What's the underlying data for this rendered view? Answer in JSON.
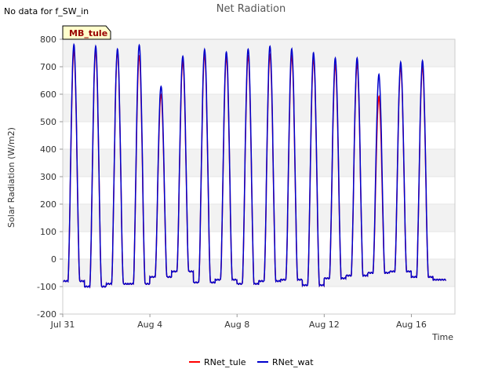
{
  "corner_note": "No data for f_SW_in",
  "chart_data": {
    "type": "line",
    "title": "Net Radiation",
    "xlabel": "Time",
    "ylabel": "Solar Radiation (W/m2)",
    "ylim": [
      -200,
      800
    ],
    "yticks": [
      -200,
      -100,
      0,
      100,
      200,
      300,
      400,
      500,
      600,
      700,
      800
    ],
    "xlim": [
      "2023-07-31",
      "2023-08-18"
    ],
    "xticks": [
      {
        "date": "2023-07-31",
        "label": "Jul 31"
      },
      {
        "date": "2023-08-04",
        "label": "Aug 4"
      },
      {
        "date": "2023-08-08",
        "label": "Aug 8"
      },
      {
        "date": "2023-08-12",
        "label": "Aug 12"
      },
      {
        "date": "2023-08-16",
        "label": "Aug 16"
      }
    ],
    "site_label": "MB_tule",
    "background_bands": true,
    "legend_placement": "bottom-center",
    "series": [
      {
        "name": "RNet_tule",
        "color": "#ff0000"
      },
      {
        "name": "RNet_wat",
        "color": "#0000cc"
      }
    ],
    "daily": [
      {
        "day": "2023-07-31",
        "night": -80,
        "tule_peak": 760,
        "wat_peak": 780
      },
      {
        "day": "2023-08-01",
        "night": -100,
        "tule_peak": 760,
        "wat_peak": 775
      },
      {
        "day": "2023-08-02",
        "night": -90,
        "tule_peak": 755,
        "wat_peak": 765
      },
      {
        "day": "2023-08-03",
        "night": -90,
        "tule_peak": 740,
        "wat_peak": 780
      },
      {
        "day": "2023-08-04",
        "night": -65,
        "tule_peak": 600,
        "wat_peak": 630
      },
      {
        "day": "2023-08-05",
        "night": -45,
        "tule_peak": 720,
        "wat_peak": 740
      },
      {
        "day": "2023-08-06",
        "night": -85,
        "tule_peak": 745,
        "wat_peak": 765
      },
      {
        "day": "2023-08-07",
        "night": -75,
        "tule_peak": 735,
        "wat_peak": 755
      },
      {
        "day": "2023-08-08",
        "night": -90,
        "tule_peak": 740,
        "wat_peak": 765
      },
      {
        "day": "2023-08-09",
        "night": -80,
        "tule_peak": 745,
        "wat_peak": 775
      },
      {
        "day": "2023-08-10",
        "night": -75,
        "tule_peak": 740,
        "wat_peak": 765
      },
      {
        "day": "2023-08-11",
        "night": -95,
        "tule_peak": 730,
        "wat_peak": 750
      },
      {
        "day": "2023-08-12",
        "night": -70,
        "tule_peak": 705,
        "wat_peak": 730
      },
      {
        "day": "2023-08-13",
        "night": -60,
        "tule_peak": 710,
        "wat_peak": 730
      },
      {
        "day": "2023-08-14",
        "night": -50,
        "tule_peak": 590,
        "wat_peak": 670
      },
      {
        "day": "2023-08-15",
        "night": -45,
        "tule_peak": 700,
        "wat_peak": 715
      },
      {
        "day": "2023-08-16",
        "night": -65,
        "tule_peak": 700,
        "wat_peak": 720
      },
      {
        "day": "2023-08-17",
        "night": -75,
        "tule_peak": null,
        "wat_peak": null
      }
    ]
  }
}
